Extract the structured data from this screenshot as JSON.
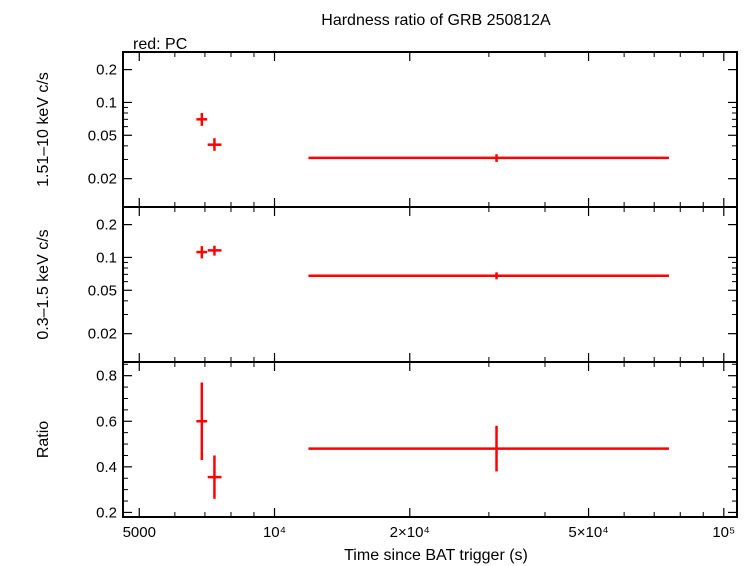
{
  "title": "Hardness ratio of GRB 250812A",
  "legend_note": "red: PC",
  "colors": {
    "data": "#ff0000",
    "axis": "#000000",
    "background": "#ffffff"
  },
  "chart_data": {
    "type": "scatter",
    "xlabel": "Time since BAT trigger (s)",
    "x_scale": "log",
    "xlim": [
      4600,
      107000
    ],
    "x_ticks": [
      {
        "value": 5000,
        "label": "5000"
      },
      {
        "value": 10000,
        "label": "10⁴"
      },
      {
        "value": 20000,
        "label": "2×10⁴"
      },
      {
        "value": 50000,
        "label": "5×10⁴"
      },
      {
        "value": 100000,
        "label": "10⁵"
      }
    ],
    "panels": [
      {
        "ylabel": "1.51–10 keV c/s",
        "y_scale": "log",
        "ylim": [
          0.011,
          0.29
        ],
        "y_ticks": [
          {
            "value": 0.02,
            "label": "0.02"
          },
          {
            "value": 0.05,
            "label": "0.05"
          },
          {
            "value": 0.1,
            "label": "0.1"
          },
          {
            "value": 0.2,
            "label": "0.2"
          }
        ],
        "points": [
          {
            "x": 6890,
            "xlo": 6700,
            "xhi": 7080,
            "y": 0.07,
            "ylo": 0.061,
            "yhi": 0.08
          },
          {
            "x": 7350,
            "xlo": 7100,
            "xhi": 7620,
            "y": 0.041,
            "ylo": 0.036,
            "yhi": 0.047
          },
          {
            "x": 31200,
            "xlo": 11900,
            "xhi": 75500,
            "y": 0.031,
            "ylo": 0.0285,
            "yhi": 0.0335
          }
        ]
      },
      {
        "ylabel": "0.3–1.5 keV c/s",
        "y_scale": "log",
        "ylim": [
          0.011,
          0.29
        ],
        "y_ticks": [
          {
            "value": 0.02,
            "label": "0.02"
          },
          {
            "value": 0.05,
            "label": "0.05"
          },
          {
            "value": 0.1,
            "label": "0.1"
          },
          {
            "value": 0.2,
            "label": "0.2"
          }
        ],
        "points": [
          {
            "x": 6890,
            "xlo": 6700,
            "xhi": 7080,
            "y": 0.112,
            "ylo": 0.098,
            "yhi": 0.127
          },
          {
            "x": 7350,
            "xlo": 7100,
            "xhi": 7620,
            "y": 0.116,
            "ylo": 0.104,
            "yhi": 0.128
          },
          {
            "x": 31200,
            "xlo": 11900,
            "xhi": 75500,
            "y": 0.068,
            "ylo": 0.063,
            "yhi": 0.073
          }
        ]
      },
      {
        "ylabel": "Ratio",
        "y_scale": "linear",
        "ylim": [
          0.18,
          0.86
        ],
        "y_ticks": [
          {
            "value": 0.2,
            "label": "0.2"
          },
          {
            "value": 0.4,
            "label": "0.4"
          },
          {
            "value": 0.6,
            "label": "0.6"
          },
          {
            "value": 0.8,
            "label": "0.8"
          }
        ],
        "points": [
          {
            "x": 6890,
            "xlo": 6700,
            "xhi": 7080,
            "y": 0.6,
            "ylo": 0.43,
            "yhi": 0.77
          },
          {
            "x": 7350,
            "xlo": 7100,
            "xhi": 7620,
            "y": 0.355,
            "ylo": 0.26,
            "yhi": 0.45
          },
          {
            "x": 31200,
            "xlo": 11900,
            "xhi": 75500,
            "y": 0.48,
            "ylo": 0.38,
            "yhi": 0.58
          }
        ]
      }
    ]
  }
}
